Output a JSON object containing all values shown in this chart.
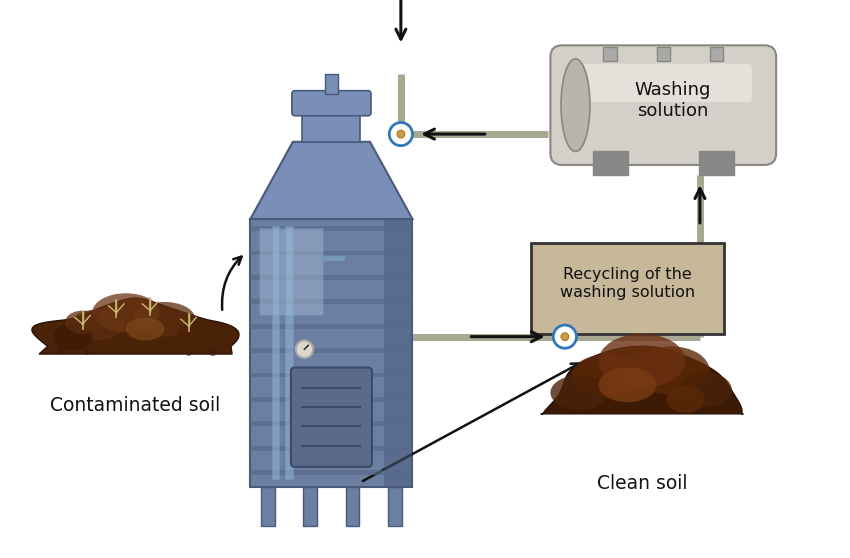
{
  "bg_color": "#ffffff",
  "washing_solution_label": "Washing\nsolution",
  "recycling_label": "Recycling of the\nwashing solution",
  "contaminated_label": "Contaminated soil",
  "clean_label": "Clean soil",
  "tank_body_color": "#6b7fa3",
  "tank_mid_color": "#7a8fb8",
  "tank_light_color": "#9aafd0",
  "tank_edge_color": "#4a5a7a",
  "horiz_tank_body": "#d4cfc8",
  "horiz_tank_highlight": "#e8e4de",
  "horiz_tank_shadow": "#b8b4ae",
  "horiz_tank_edge": "#888880",
  "recycling_box_fill": "#c8b89a",
  "recycling_box_edge": "#333333",
  "pipe_color": "#a8a890",
  "conn_fill": "#ffffff",
  "conn_edge": "#3377bb",
  "arrow_color": "#111111",
  "soil_base": "#4a2208",
  "soil_mid": "#5c2e10",
  "soil_light": "#7a4518",
  "clean_base": "#3d1a05",
  "clean_mid": "#5a2808",
  "clean_light": "#6e3510"
}
